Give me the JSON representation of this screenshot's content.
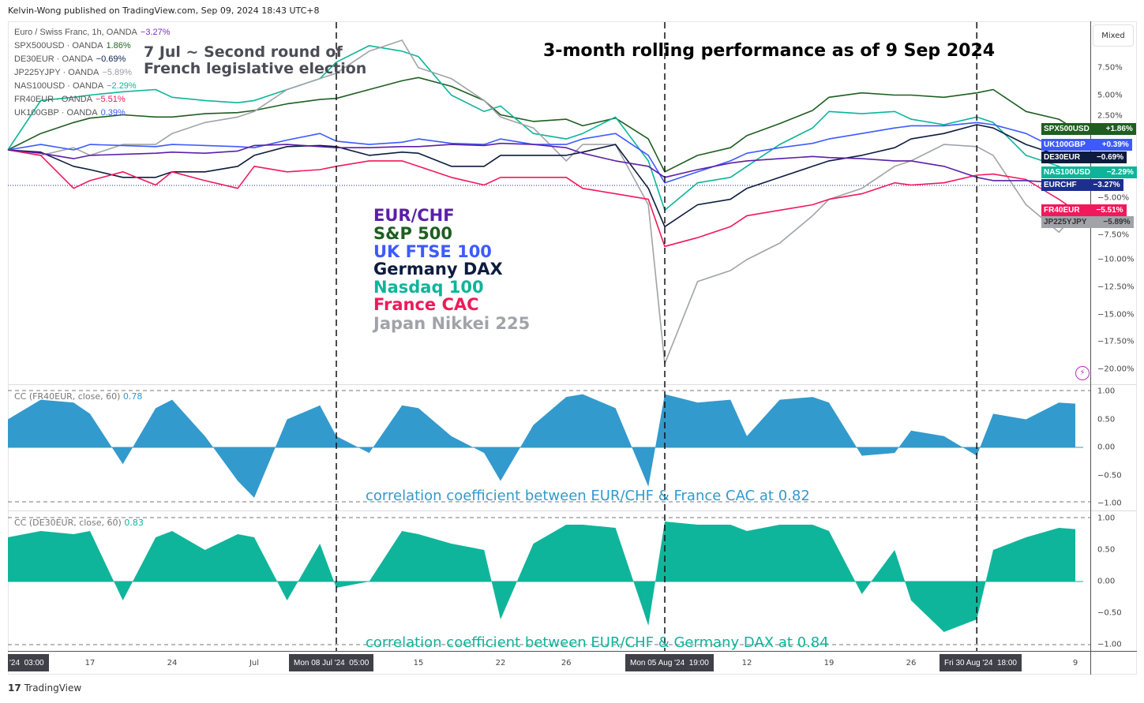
{
  "header": {
    "published": "Kelvin-Wong published on TradingView.com, Sep 09, 2024 18:43 UTC+8"
  },
  "scale_mode": "Mixed",
  "legend": [
    {
      "label": "Euro / Swiss Franc, 1h, OANDA",
      "value": "−3.27%",
      "color": "#7b2fbf"
    },
    {
      "label": "SPX500USD · OANDA",
      "value": "1.86%",
      "color": "#1e6b22"
    },
    {
      "label": "DE30EUR · OANDA",
      "value": "−0.69%",
      "color": "#0d2350"
    },
    {
      "label": "JP225YJPY · OANDA",
      "value": "−5.89%",
      "color": "#9a9ca2"
    },
    {
      "label": "NAS100USD · OANDA",
      "value": "−2.29%",
      "color": "#0cb59a"
    },
    {
      "label": "FR40EUR · OANDA",
      "value": "−5.51%",
      "color": "#f0195b"
    },
    {
      "label": "UK100GBP · OANDA",
      "value": "0.39%",
      "color": "#3d5afe"
    }
  ],
  "annotations": {
    "event": [
      "7 Jul ~ Second round of",
      "French legislative election"
    ],
    "title": "3-month rolling performance as of 9 Sep 2024",
    "key": [
      {
        "label": "EUR/CHF",
        "color": "#5b1fa8"
      },
      {
        "label": "S&P 500",
        "color": "#1e5e20"
      },
      {
        "label": "UK FTSE 100",
        "color": "#3d5afe"
      },
      {
        "label": "Germany DAX",
        "color": "#0d1b3e"
      },
      {
        "label": "Nasdaq 100",
        "color": "#0cb59a"
      },
      {
        "label": "France CAC",
        "color": "#f0195b"
      },
      {
        "label": "Japan Nikkei 225",
        "color": "#a0a3a8"
      }
    ],
    "cc_fr_note": "correlation coefficient between EUR/CHF & France CAC at 0.82",
    "cc_de_note": "correlation coefficient between EUR/CHF & Germany DAX at 0.84"
  },
  "price_tags": [
    {
      "name": "SPX500USD",
      "value": "+1.86%",
      "color": "#1e5e20"
    },
    {
      "name": "UK100GBP",
      "value": "+0.39%",
      "color": "#3d5afe"
    },
    {
      "name": "DE30EUR",
      "value": "−0.69%",
      "color": "#0d1b3e"
    },
    {
      "name": "NAS100USD",
      "value": "−2.29%",
      "color": "#0cb59a"
    },
    {
      "name": "EURCHF",
      "value": "−3.27%",
      "color": "#1a2f8f"
    },
    {
      "name": "FR40EUR",
      "value": "−5.51%",
      "color": "#f0195b"
    },
    {
      "name": "JP225YJPY",
      "value": "−5.89%",
      "color": "#a0a3a8"
    }
  ],
  "time_axis": {
    "ticks": [
      {
        "label": "17",
        "date": "2024-06-17"
      },
      {
        "label": "24",
        "date": "2024-06-24"
      },
      {
        "label": "Jul",
        "date": "2024-07-01"
      },
      {
        "label": "15",
        "date": "2024-07-15"
      },
      {
        "label": "22",
        "date": "2024-07-22"
      },
      {
        "label": "26",
        "date": "2024-07-26"
      },
      {
        "label": "12",
        "date": "2024-08-12"
      },
      {
        "label": "19",
        "date": "2024-08-19"
      },
      {
        "label": "26",
        "date": "2024-08-26"
      },
      {
        "label": "9",
        "date": "2024-09-09"
      }
    ],
    "highlights": [
      "'24  03:00",
      "Mon 08 Jul '24  05:00",
      "Mon 05 Aug '24  19:00",
      "Fri 30 Aug '24  18:00"
    ]
  },
  "cc_panels": [
    {
      "label": "CC (FR40EUR, close, 60)",
      "value": "0.78",
      "color": "#3399cc"
    },
    {
      "label": "CC (DE30EUR, close, 60)",
      "value": "0.83",
      "color": "#0cb59a"
    }
  ],
  "footer": {
    "logo": "TradingView"
  },
  "chart_data": [
    {
      "type": "line",
      "title": "3-month rolling performance as of 9 Sep 2024",
      "y_unit": "%",
      "ylim": [
        -21,
        10
      ],
      "y_ticks": [
        7.5,
        5,
        2.5,
        -5,
        -7.5,
        -10,
        -12.5,
        -15,
        -17.5,
        -20
      ],
      "x": [
        "2024-06-10",
        "2024-06-12",
        "2024-06-14",
        "2024-06-17",
        "2024-06-19",
        "2024-06-21",
        "2024-06-24",
        "2024-06-26",
        "2024-06-28",
        "2024-07-01",
        "2024-07-03",
        "2024-07-05",
        "2024-07-08",
        "2024-07-10",
        "2024-07-12",
        "2024-07-15",
        "2024-07-17",
        "2024-07-19",
        "2024-07-22",
        "2024-07-24",
        "2024-07-26",
        "2024-07-29",
        "2024-07-31",
        "2024-08-02",
        "2024-08-05",
        "2024-08-07",
        "2024-08-09",
        "2024-08-12",
        "2024-08-14",
        "2024-08-16",
        "2024-08-19",
        "2024-08-21",
        "2024-08-23",
        "2024-08-26",
        "2024-08-28",
        "2024-08-30",
        "2024-09-02",
        "2024-09-04",
        "2024-09-06",
        "2024-09-09"
      ],
      "vertical_markers": [
        "2024-07-08",
        "2024-08-05",
        "2024-08-30"
      ],
      "series": [
        {
          "name": "SPX500USD",
          "color": "#1e5e20",
          "values": [
            0,
            1.5,
            2.5,
            2.9,
            3.2,
            3.0,
            3.0,
            3.3,
            3.4,
            3.6,
            4.2,
            4.6,
            4.7,
            5.5,
            6.3,
            6.6,
            5.8,
            4.5,
            3.2,
            2.6,
            2.8,
            2.2,
            2.9,
            1.0,
            -2.0,
            -0.5,
            0.2,
            1.3,
            2.4,
            3.6,
            4.8,
            5.2,
            5.0,
            5.0,
            4.8,
            5.2,
            5.5,
            3.5,
            2.8,
            1.86
          ]
        },
        {
          "name": "NAS100USD",
          "color": "#0cb59a",
          "values": [
            0,
            4.5,
            4.8,
            5.0,
            5.3,
            5.5,
            4.8,
            4.5,
            4.3,
            4.5,
            5.5,
            6.5,
            8.0,
            9.5,
            9.0,
            8.5,
            5.0,
            3.5,
            4.0,
            1.5,
            1.0,
            1.5,
            3.0,
            -1.0,
            -5.5,
            -3.0,
            -2.5,
            -1.5,
            0.5,
            2.0,
            3.5,
            3.3,
            3.5,
            2.8,
            2.3,
            3.0,
            2.5,
            -0.5,
            -1.5,
            -2.29
          ]
        },
        {
          "name": "JP225YJPY",
          "color": "#a0a3a8",
          "values": [
            0,
            -0.5,
            0.2,
            -0.5,
            0.5,
            0.5,
            1.5,
            2.5,
            3.0,
            3.5,
            5.5,
            6.5,
            7.0,
            9.0,
            10.0,
            7.5,
            6.5,
            4.5,
            3.0,
            2.0,
            -1.0,
            0.5,
            0.5,
            -5.0,
            -19.5,
            -12.0,
            -11.0,
            -10.0,
            -8.5,
            -6.0,
            -4.5,
            -3.5,
            -1.5,
            -1.0,
            0.5,
            0.3,
            -0.5,
            -5.0,
            -7.5,
            -5.89
          ]
        },
        {
          "name": "DE30EUR",
          "color": "#0d1b3e",
          "values": [
            0,
            -0.2,
            -1.5,
            -1.8,
            -2.5,
            -2.5,
            -2.0,
            -2.0,
            -1.5,
            -0.5,
            0.3,
            0.4,
            0.3,
            -0.5,
            -0.2,
            -0.3,
            -1.5,
            -1.5,
            -0.5,
            -0.5,
            -0.5,
            -0.2,
            0.5,
            -3.5,
            -7.0,
            -5.0,
            -4.5,
            -3.5,
            -2.5,
            -1.5,
            -1.0,
            -0.5,
            0.2,
            1.0,
            1.5,
            2.3,
            2.0,
            0.5,
            -0.5,
            -0.69
          ]
        },
        {
          "name": "UK100GBP",
          "color": "#3d5afe",
          "values": [
            0,
            0.5,
            0,
            0.5,
            0.4,
            0.3,
            0.5,
            0.4,
            0.3,
            0.2,
            0.9,
            1.5,
            0.8,
            0.5,
            0.7,
            1.0,
            0.6,
            0.5,
            1.0,
            0.5,
            0.5,
            1.0,
            1.5,
            -0.5,
            -3.0,
            -2.0,
            -1.0,
            -0.3,
            0.2,
            0.6,
            1.0,
            1.5,
            2.0,
            2.2,
            2.2,
            2.5,
            2.3,
            1.5,
            0.0,
            0.39
          ]
        },
        {
          "name": "FR40EUR",
          "color": "#f0195b",
          "values": [
            0,
            -0.5,
            -3.5,
            -2.8,
            -2.0,
            -3.2,
            -2.0,
            -2.8,
            -3.5,
            -1.5,
            -2.0,
            -1.8,
            -1.5,
            -1.0,
            -1.0,
            -1.5,
            -2.5,
            -3.2,
            -2.5,
            -2.5,
            -2.5,
            -3.5,
            -4.0,
            -4.5,
            -8.8,
            -8.0,
            -7.0,
            -6.0,
            -5.5,
            -5.0,
            -4.5,
            -4.0,
            -3.0,
            -3.2,
            -3.0,
            -2.3,
            -2.2,
            -2.7,
            -4.5,
            -5.51
          ]
        },
        {
          "name": "EURCHF",
          "color": "#5b1fa8",
          "values": [
            0,
            -0.3,
            -0.8,
            -0.5,
            -0.4,
            -0.3,
            -0.2,
            -0.3,
            -0.1,
            0.4,
            0.5,
            0.3,
            0.2,
            0.2,
            0.3,
            0.3,
            0.5,
            0.4,
            0.6,
            0.5,
            0.2,
            -0.3,
            -1.0,
            -1.5,
            -2.5,
            -1.8,
            -1.2,
            -1.0,
            -0.8,
            -0.6,
            -0.7,
            -0.8,
            -1.0,
            -1.0,
            -1.5,
            -2.5,
            -2.8,
            -2.8,
            -3.0,
            -3.27
          ]
        }
      ]
    },
    {
      "type": "area",
      "title": "CC (FR40EUR, close, 60)",
      "ylim": [
        -1,
        1
      ],
      "y_ticks": [
        1,
        0.5,
        0,
        -0.5,
        -1
      ],
      "x_ref": "same as performance chart",
      "values": [
        0.5,
        0.85,
        0.8,
        0.6,
        -0.3,
        0.7,
        0.85,
        0.2,
        -0.6,
        -0.9,
        0.5,
        0.75,
        0.2,
        -0.1,
        0.75,
        0.7,
        0.2,
        -0.1,
        -0.6,
        0.4,
        0.9,
        0.95,
        0.7,
        -0.7,
        0.95,
        0.8,
        0.85,
        0.2,
        0.85,
        0.9,
        0.8,
        -0.15,
        -0.1,
        0.3,
        0.2,
        -0.15,
        0.6,
        0.5,
        0.8,
        0.78
      ]
    },
    {
      "type": "area",
      "title": "CC (DE30EUR, close, 60)",
      "ylim": [
        -1,
        1
      ],
      "y_ticks": [
        1,
        0.5,
        0,
        -0.5,
        -1
      ],
      "x_ref": "same as performance chart",
      "values": [
        0.7,
        0.8,
        0.75,
        0.8,
        -0.3,
        0.7,
        0.8,
        0.5,
        0.75,
        0.7,
        -0.3,
        0.6,
        -0.1,
        0.0,
        0.8,
        0.75,
        0.6,
        0.5,
        -0.6,
        0.6,
        0.9,
        0.9,
        0.85,
        -0.7,
        0.95,
        0.9,
        0.9,
        0.8,
        0.9,
        0.9,
        0.8,
        -0.2,
        0.5,
        -0.3,
        -0.8,
        -0.6,
        0.5,
        0.7,
        0.85,
        0.83
      ]
    }
  ]
}
